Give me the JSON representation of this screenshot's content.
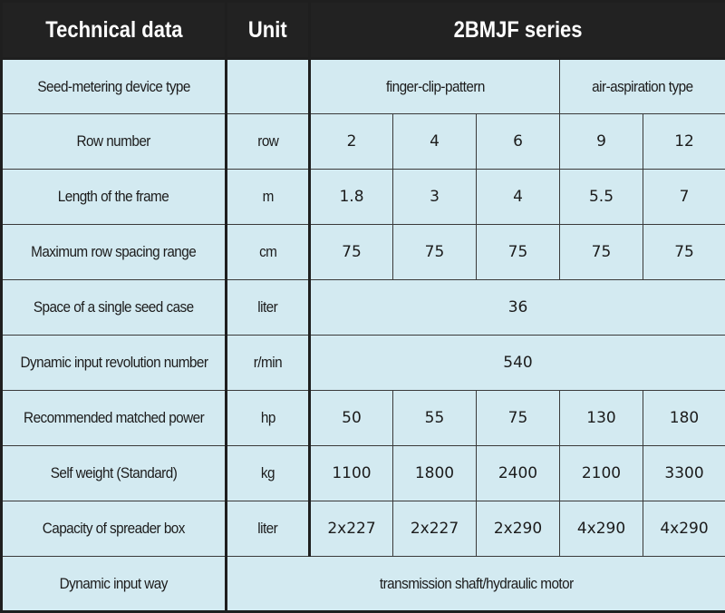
{
  "header": {
    "col1": "Technical data",
    "col2": "Unit",
    "col3": "2BMJF series"
  },
  "rows": [
    {
      "label": "Seed-metering device type",
      "unit": "",
      "groups": [
        "finger-clip-pattern",
        "air-aspiration type"
      ]
    },
    {
      "label": "Row number",
      "unit": "row",
      "values": [
        "2",
        "4",
        "6",
        "9",
        "12"
      ]
    },
    {
      "label": "Length of the frame",
      "unit": "m",
      "values": [
        "1.8",
        "3",
        "4",
        "5.5",
        "7"
      ]
    },
    {
      "label": "Maximum row spacing range",
      "unit": "cm",
      "values": [
        "75",
        "75",
        "75",
        "75",
        "75"
      ]
    },
    {
      "label": "Space of a single seed case",
      "unit": "liter",
      "merged": "36"
    },
    {
      "label": "Dynamic input revolution number",
      "unit": "r/min",
      "merged": "540"
    },
    {
      "label": "Recommended matched power",
      "unit": "hp",
      "values": [
        "50",
        "55",
        "75",
        "130",
        "180"
      ]
    },
    {
      "label": "Self weight (Standard)",
      "unit": "kg",
      "values": [
        "1100",
        "1800",
        "2400",
        "2100",
        "3300"
      ]
    },
    {
      "label": "Capacity of spreader box",
      "unit": "liter",
      "values": [
        "2x227",
        "2x227",
        "2x290",
        "4x290",
        "4x290"
      ]
    },
    {
      "label": "Dynamic input way",
      "merged_with_unit": "transmission shaft/hydraulic motor"
    }
  ],
  "colors": {
    "header_bg": "#222222",
    "cell_bg": "#d3eaf1",
    "border": "#1f1f1f"
  }
}
